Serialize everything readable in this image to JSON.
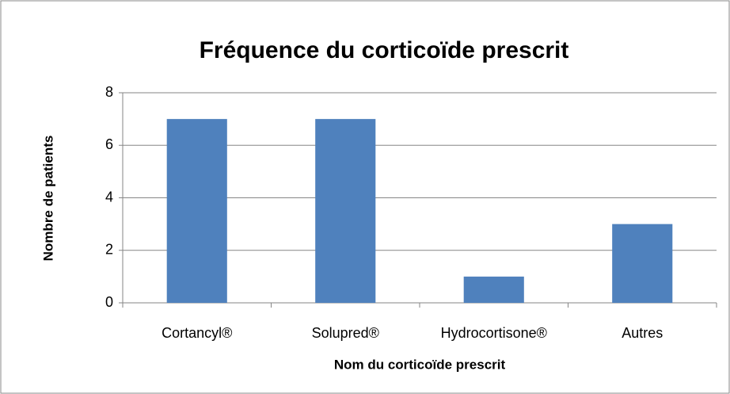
{
  "chart_data": {
    "type": "bar",
    "title": "Fréquence du corticoïde prescrit",
    "x_label": "Nom du corticoïde prescrit",
    "y_label": "Nombre de patients",
    "categories": [
      "Cortancyl®",
      "Solupred®",
      "Hydrocortisone®",
      "Autres"
    ],
    "values": [
      7,
      7,
      1,
      3
    ],
    "color": "#4f81bd",
    "ylim": [
      0,
      8
    ],
    "yticks": [
      0,
      2,
      4,
      6,
      8
    ],
    "grid": true
  }
}
